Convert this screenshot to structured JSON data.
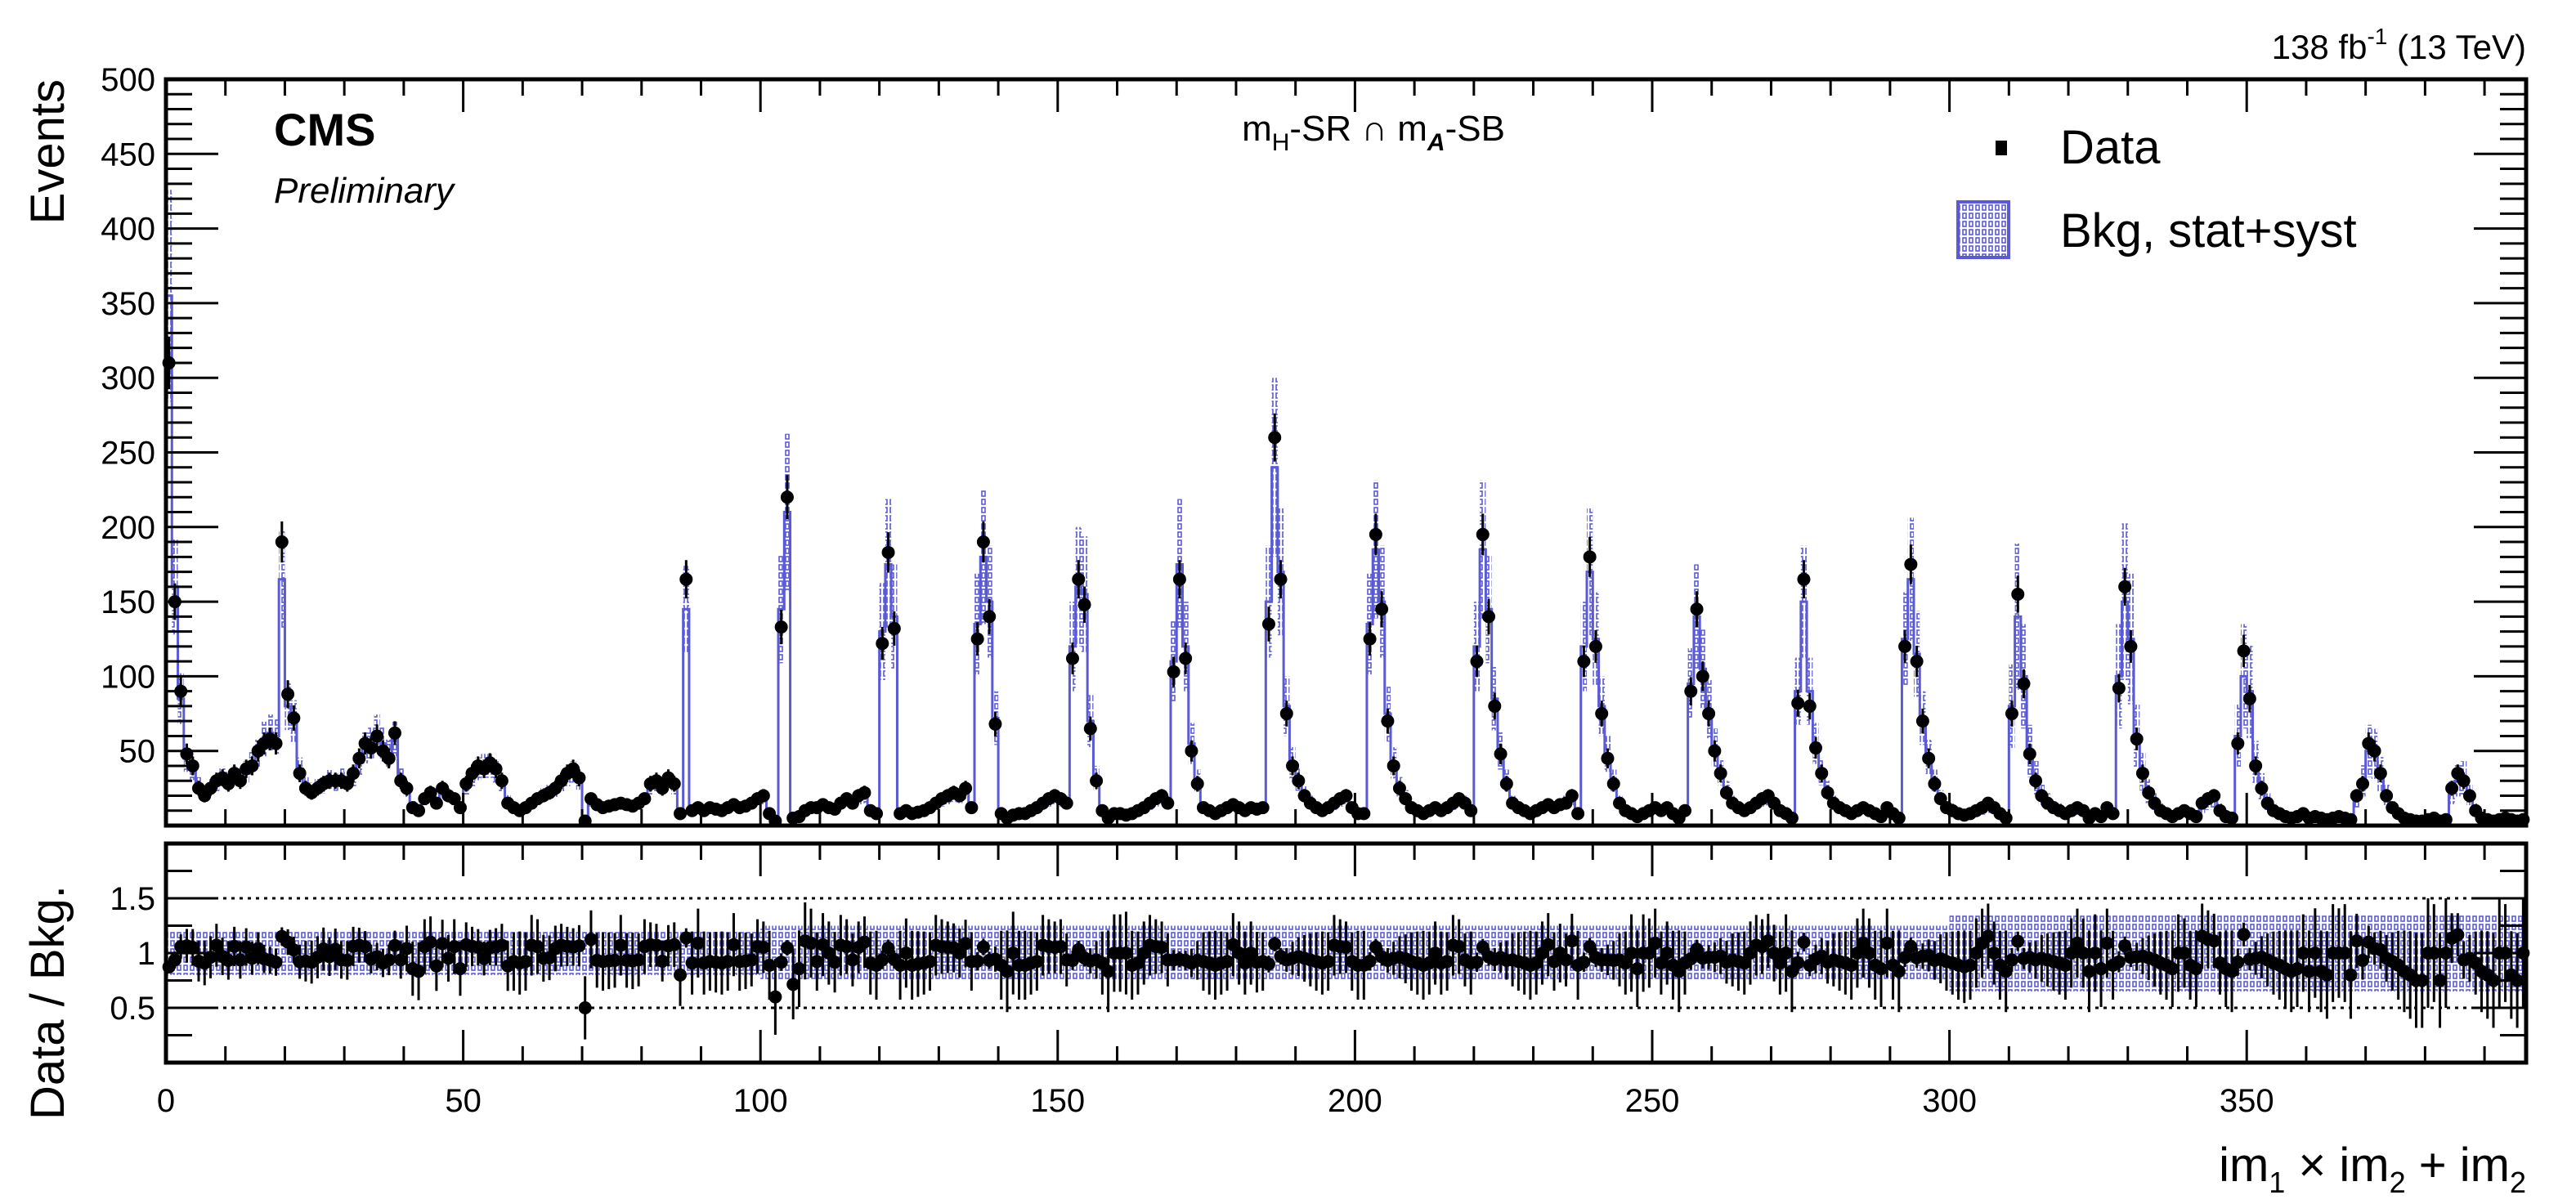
{
  "header": {
    "experiment": "CMS",
    "status": "Preliminary",
    "lumi": "138 fb",
    "lumi_sup": "-1",
    "energy": " (13 TeV)",
    "region_parts": [
      "m",
      "H",
      "-SR ∩ m",
      "A",
      "-SB"
    ]
  },
  "legend": {
    "position": "top-right",
    "data_label": "Data",
    "bkg_label": "Bkg, stat+syst"
  },
  "colors": {
    "bkg": "#5a5ad6",
    "data": "#000000"
  },
  "chart_data": {
    "type": "histogram with data points and ratio panel",
    "xlabel_parts": [
      "im",
      "1",
      " × im",
      "2",
      " + im",
      "2"
    ],
    "ylabel": "Events",
    "ratio_ylabel": "Data / Bkg.",
    "xlim": [
      0,
      397
    ],
    "ylim": [
      0,
      500
    ],
    "ratio_ylim": [
      0,
      2
    ],
    "x_ticks": [
      "0",
      "50",
      "100",
      "150",
      "200",
      "250",
      "300",
      "350"
    ],
    "y_ticks": [
      "50",
      "100",
      "150",
      "200",
      "250",
      "300",
      "350",
      "400",
      "450",
      "500"
    ],
    "ratio_ticks": [
      "0.5",
      "1",
      "1.5"
    ],
    "ratio_reference_lines": [
      0.5,
      1.5
    ],
    "bin_width": 1,
    "data": [
      310,
      150,
      90,
      48,
      40,
      25,
      20,
      25,
      30,
      32,
      28,
      35,
      30,
      38,
      40,
      50,
      55,
      58,
      55,
      190,
      88,
      72,
      35,
      25,
      22,
      25,
      28,
      30,
      30,
      30,
      28,
      35,
      45,
      55,
      52,
      60,
      50,
      45,
      62,
      30,
      25,
      12,
      10,
      18,
      22,
      15,
      25,
      20,
      18,
      12,
      28,
      35,
      40,
      38,
      42,
      38,
      30,
      15,
      12,
      10,
      12,
      15,
      18,
      20,
      22,
      25,
      30,
      35,
      38,
      32,
      3,
      18,
      14,
      12,
      13,
      14,
      15,
      14,
      13,
      15,
      18,
      28,
      30,
      25,
      32,
      28,
      8,
      165,
      10,
      12,
      10,
      12,
      11,
      10,
      12,
      14,
      12,
      13,
      15,
      18,
      20,
      8,
      3,
      133,
      220,
      5,
      6,
      10,
      12,
      12,
      14,
      12,
      11,
      15,
      18,
      15,
      20,
      22,
      10,
      8,
      122,
      183,
      132,
      8,
      10,
      8,
      9,
      10,
      12,
      15,
      18,
      20,
      22,
      20,
      25,
      12,
      125,
      190,
      140,
      68,
      8,
      5,
      7,
      8,
      8,
      10,
      12,
      15,
      18,
      20,
      18,
      15,
      112,
      165,
      148,
      65,
      30,
      10,
      5,
      8,
      8,
      7,
      8,
      10,
      12,
      15,
      18,
      20,
      15,
      103,
      165,
      112,
      50,
      28,
      12,
      10,
      8,
      10,
      12,
      14,
      12,
      10,
      12,
      11,
      12,
      135,
      260,
      165,
      75,
      40,
      30,
      20,
      15,
      12,
      10,
      12,
      15,
      18,
      20,
      12,
      8,
      8,
      125,
      195,
      145,
      70,
      40,
      25,
      18,
      12,
      10,
      8,
      10,
      12,
      10,
      12,
      15,
      18,
      15,
      10,
      110,
      195,
      140,
      80,
      48,
      28,
      15,
      12,
      10,
      8,
      10,
      12,
      14,
      12,
      14,
      15,
      20,
      8,
      110,
      180,
      120,
      75,
      45,
      28,
      15,
      10,
      8,
      6,
      8,
      10,
      12,
      10,
      12,
      8,
      5,
      10,
      90,
      145,
      100,
      75,
      50,
      35,
      22,
      15,
      12,
      10,
      12,
      15,
      18,
      20,
      15,
      10,
      8,
      5,
      82,
      165,
      80,
      52,
      35,
      22,
      15,
      12,
      10,
      8,
      10,
      12,
      10,
      8,
      6,
      12,
      8,
      5,
      120,
      175,
      110,
      70,
      45,
      28,
      18,
      12,
      10,
      8,
      7,
      8,
      10,
      12,
      15,
      12,
      8,
      5,
      75,
      155,
      95,
      48,
      30,
      20,
      15,
      12,
      10,
      8,
      10,
      12,
      10,
      5,
      8,
      6,
      12,
      8,
      92,
      160,
      120,
      58,
      35,
      22,
      15,
      10,
      8,
      6,
      8,
      10,
      8,
      6,
      15,
      18,
      20,
      10,
      6,
      5,
      55,
      117,
      85,
      40,
      25,
      15,
      10,
      8,
      6,
      5,
      6,
      8,
      5,
      6,
      5,
      4,
      5,
      6,
      5,
      4,
      20,
      28,
      55,
      50,
      35,
      20,
      12,
      8,
      5,
      4,
      3,
      3,
      4,
      5,
      3,
      4,
      25,
      35,
      30,
      20,
      10,
      5,
      4,
      3,
      4,
      5,
      4,
      3,
      4
    ],
    "bkg": [
      355,
      160,
      85,
      45,
      38,
      27,
      22,
      26,
      28,
      33,
      30,
      33,
      32,
      36,
      42,
      48,
      58,
      62,
      60,
      165,
      80,
      70,
      38,
      27,
      24,
      26,
      27,
      31,
      29,
      32,
      30,
      33,
      42,
      52,
      55,
      62,
      55,
      48,
      58,
      32,
      24,
      14,
      12,
      17,
      20,
      17,
      23,
      21,
      17,
      14,
      26,
      33,
      38,
      40,
      40,
      36,
      28,
      17,
      13,
      11,
      13,
      14,
      17,
      21,
      23,
      24,
      28,
      33,
      36,
      30,
      6,
      16,
      15,
      13,
      14,
      15,
      14,
      15,
      14,
      16,
      17,
      26,
      28,
      27,
      30,
      26,
      10,
      145,
      11,
      11,
      11,
      13,
      12,
      11,
      13,
      13,
      13,
      14,
      16,
      17,
      19,
      9,
      5,
      145,
      210,
      7,
      7,
      9,
      11,
      13,
      13,
      12,
      12,
      14,
      17,
      16,
      19,
      20,
      11,
      9,
      130,
      175,
      140,
      9,
      10,
      9,
      10,
      11,
      13,
      14,
      17,
      19,
      21,
      20,
      23,
      13,
      135,
      180,
      150,
      72,
      9,
      6,
      7,
      9,
      9,
      11,
      13,
      14,
      17,
      19,
      17,
      16,
      120,
      160,
      155,
      70,
      32,
      11,
      6,
      8,
      8,
      7,
      9,
      11,
      12,
      14,
      17,
      19,
      16,
      110,
      175,
      120,
      55,
      30,
      13,
      11,
      9,
      11,
      13,
      13,
      12,
      11,
      12,
      12,
      13,
      150,
      240,
      170,
      80,
      42,
      31,
      21,
      16,
      13,
      11,
      13,
      14,
      17,
      19,
      13,
      9,
      9,
      135,
      185,
      150,
      75,
      42,
      26,
      19,
      13,
      11,
      9,
      11,
      12,
      11,
      13,
      14,
      17,
      16,
      11,
      120,
      185,
      145,
      85,
      50,
      30,
      16,
      13,
      11,
      9,
      11,
      12,
      13,
      13,
      14,
      16,
      18,
      9,
      120,
      170,
      125,
      80,
      48,
      30,
      16,
      11,
      8,
      7,
      8,
      10,
      11,
      11,
      12,
      9,
      6,
      11,
      95,
      140,
      105,
      78,
      52,
      36,
      24,
      16,
      13,
      11,
      12,
      14,
      17,
      18,
      15,
      11,
      8,
      6,
      90,
      150,
      90,
      55,
      36,
      24,
      16,
      13,
      11,
      9,
      10,
      11,
      10,
      9,
      7,
      11,
      9,
      6,
      125,
      165,
      115,
      72,
      46,
      30,
      19,
      13,
      11,
      9,
      8,
      9,
      10,
      11,
      13,
      12,
      9,
      6,
      80,
      140,
      100,
      50,
      32,
      21,
      16,
      13,
      11,
      9,
      10,
      11,
      10,
      6,
      8,
      7,
      11,
      9,
      100,
      150,
      125,
      60,
      36,
      23,
      16,
      11,
      9,
      7,
      8,
      10,
      9,
      7,
      13,
      16,
      18,
      11,
      7,
      6,
      60,
      100,
      90,
      42,
      26,
      16,
      11,
      9,
      7,
      6,
      7,
      8,
      6,
      6,
      6,
      5,
      5,
      6,
      5,
      5,
      18,
      30,
      50,
      48,
      34,
      21,
      13,
      9,
      6,
      5,
      4,
      4,
      4,
      5,
      4,
      4,
      22,
      30,
      32,
      21,
      11,
      6,
      5,
      4,
      4,
      5,
      5,
      4,
      4
    ],
    "bkg_rel_unc": [
      {
        "from": 0,
        "to": 100,
        "value": 0.2
      },
      {
        "from": 100,
        "to": 300,
        "value": 0.25
      },
      {
        "from": 300,
        "to": 397,
        "value": 0.35
      }
    ]
  }
}
